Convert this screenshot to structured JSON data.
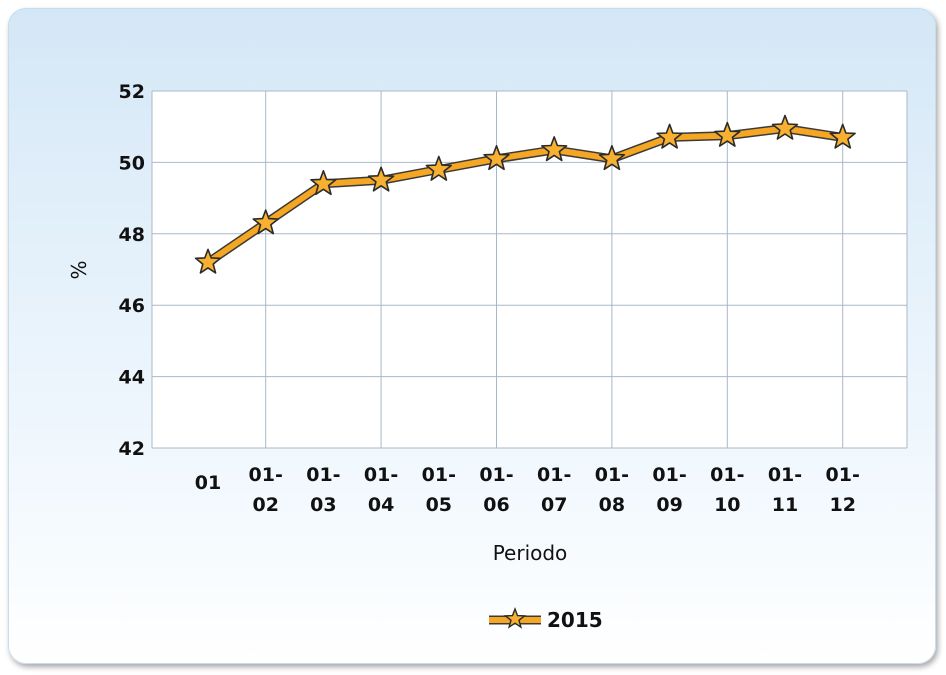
{
  "chart_data": {
    "type": "line",
    "categories": [
      "01",
      "01-02",
      "01-03",
      "01-04",
      "01-05",
      "01-06",
      "01-07",
      "01-08",
      "01-09",
      "01-10",
      "01-11",
      "01-12"
    ],
    "series": [
      {
        "name": "2015",
        "values": [
          47.2,
          48.3,
          49.4,
          49.5,
          49.8,
          50.1,
          50.35,
          50.1,
          50.7,
          50.75,
          50.95,
          50.7
        ]
      }
    ],
    "xlabel": "Periodo",
    "ylabel": "%",
    "ylim": [
      42,
      52
    ],
    "yticks": [
      42,
      44,
      46,
      48,
      50,
      52
    ],
    "grid": true,
    "legend_position": "bottom-center",
    "marker": "star",
    "colors": {
      "line": "#f5a623",
      "line_outline": "#3a3a3a",
      "marker_fill": "#f7b030",
      "grid": "#a9b8c8",
      "plot_background": "#ffffff"
    }
  }
}
